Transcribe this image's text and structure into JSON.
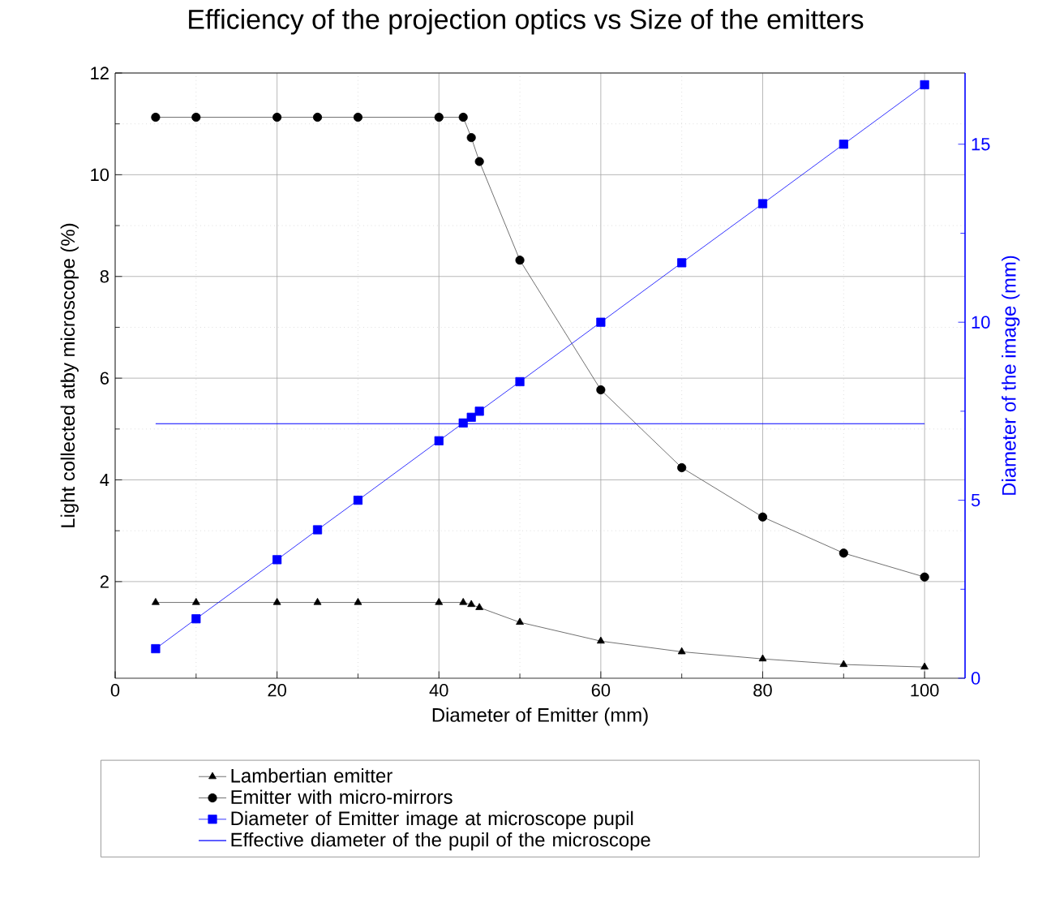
{
  "chart_data": {
    "type": "line",
    "title": "Efficiency of the projection optics vs Size of the emitters",
    "xlabel": "Diameter of Emitter (mm)",
    "ylabel": "Light collected atby microscope (%)",
    "y2label": "Diameter of the image (mm)",
    "xlim": [
      0,
      105
    ],
    "xticks": [
      0,
      20,
      40,
      60,
      80,
      100
    ],
    "ylim": [
      0.1,
      12
    ],
    "yticks": [
      2,
      4,
      6,
      8,
      10,
      12
    ],
    "y2lim": [
      0,
      17
    ],
    "y2ticks": [
      0,
      5,
      10,
      15
    ],
    "grid": true,
    "legend": "bottom",
    "series": [
      {
        "name": "Lambertian emitter",
        "color": "#000000",
        "marker": "triangle",
        "x": [
          5,
          10,
          20,
          25,
          30,
          40,
          43,
          44,
          45,
          50,
          60,
          70,
          80,
          90,
          100
        ],
        "values": [
          1.59,
          1.59,
          1.59,
          1.59,
          1.59,
          1.59,
          1.59,
          1.55,
          1.49,
          1.2,
          0.83,
          0.62,
          0.48,
          0.37,
          0.32
        ]
      },
      {
        "name": "Emitter with micro-mirrors",
        "color": "#000000",
        "marker": "circle",
        "x": [
          5,
          10,
          20,
          25,
          30,
          40,
          43,
          44,
          45,
          50,
          60,
          70,
          80,
          90,
          100
        ],
        "values": [
          11.13,
          11.13,
          11.13,
          11.13,
          11.13,
          11.13,
          11.13,
          10.73,
          10.26,
          8.32,
          5.77,
          4.24,
          3.27,
          2.56,
          2.09
        ]
      },
      {
        "name": "Diameter of Emitter image at microscope pupil",
        "color": "#0000ff",
        "marker": "square",
        "axis": "y2",
        "x": [
          5,
          10,
          20,
          25,
          30,
          40,
          43,
          44,
          45,
          50,
          60,
          70,
          80,
          90,
          100
        ],
        "values": [
          0.83,
          1.67,
          3.33,
          4.17,
          5.0,
          6.67,
          7.17,
          7.33,
          7.5,
          8.33,
          10.0,
          11.67,
          13.33,
          15.0,
          16.67
        ]
      },
      {
        "name": "Effective diameter of the pupil of the microscope",
        "color": "#0000ff",
        "marker": "none",
        "axis": "y2",
        "x": [
          5,
          100
        ],
        "values": [
          7.15,
          7.15
        ]
      }
    ]
  }
}
